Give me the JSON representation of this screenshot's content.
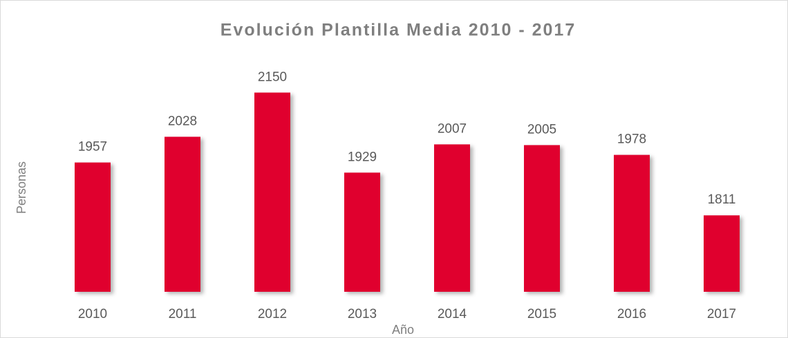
{
  "chart_data": {
    "type": "bar",
    "title": "Evolución Plantilla Media 2010 - 2017",
    "x_label": "Año",
    "y_label": "Personas",
    "categories": [
      "2010",
      "2011",
      "2012",
      "2013",
      "2014",
      "2015",
      "2016",
      "2017"
    ],
    "values": [
      1957,
      2028,
      2150,
      1929,
      2007,
      2005,
      1978,
      1811
    ],
    "color": "#e0002f",
    "ylim": [
      1600,
      2200
    ],
    "grid": false
  }
}
